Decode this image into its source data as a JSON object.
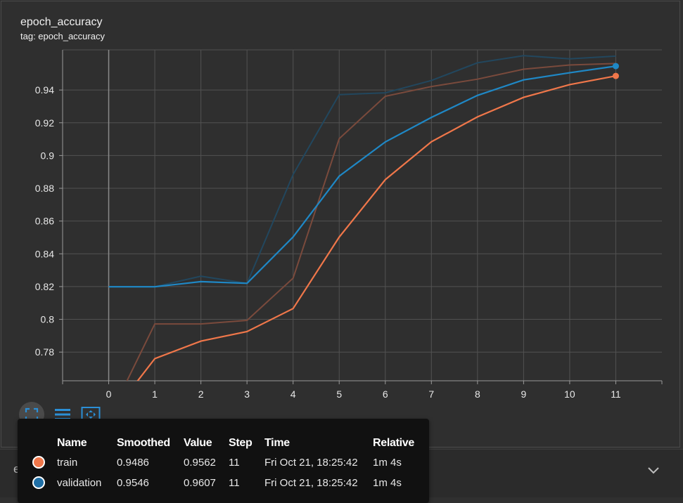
{
  "card": {
    "title": "epoch_accuracy",
    "tag": "tag: epoch_accuracy"
  },
  "chart_data": {
    "type": "line",
    "x": [
      0,
      1,
      2,
      3,
      4,
      5,
      6,
      7,
      8,
      9,
      10,
      11
    ],
    "xlim": [
      -1,
      12
    ],
    "ylim": [
      0.7625,
      0.9645
    ],
    "yticks": [
      0.78,
      0.8,
      0.82,
      0.84,
      0.86,
      0.88,
      0.9,
      0.92,
      0.94
    ],
    "ytick_labels": [
      "0.78",
      "0.8",
      "0.82",
      "0.84",
      "0.86",
      "0.88",
      "0.9",
      "0.92",
      "0.94"
    ],
    "xtick_labels": [
      "0",
      "1",
      "2",
      "3",
      "4",
      "5",
      "6",
      "7",
      "8",
      "9",
      "10",
      "11"
    ],
    "grid": true,
    "series": [
      {
        "name": "train",
        "color": "#f0774a",
        "raw_color": "#7a4a3c",
        "raw_values": [
          0.7396,
          0.7972,
          0.7972,
          0.7994,
          0.8251,
          0.9103,
          0.9362,
          0.9421,
          0.9466,
          0.9527,
          0.9553,
          0.9562
        ],
        "smoothed_values": [
          0.7396,
          0.776,
          0.7867,
          0.7925,
          0.8066,
          0.8502,
          0.8853,
          0.9084,
          0.9236,
          0.9355,
          0.9433,
          0.9486
        ]
      },
      {
        "name": "validation",
        "color": "#1f88c6",
        "raw_color": "#22475e",
        "raw_values": [
          0.8199,
          0.8199,
          0.8263,
          0.822,
          0.8884,
          0.9372,
          0.9383,
          0.9458,
          0.9566,
          0.961,
          0.959,
          0.9607
        ],
        "smoothed_values": [
          0.8199,
          0.8199,
          0.823,
          0.822,
          0.8503,
          0.8874,
          0.9083,
          0.9233,
          0.9367,
          0.9462,
          0.9505,
          0.9546
        ]
      }
    ]
  },
  "tooltip": {
    "headers": [
      "Name",
      "Smoothed",
      "Value",
      "Step",
      "Time",
      "Relative"
    ],
    "rows": [
      {
        "name": "train",
        "smoothed": "0.9486",
        "value": "0.9562",
        "step": "11",
        "time": "Fri Oct 21, 18:25:42",
        "relative": "1m 4s",
        "color": "#f0774a"
      },
      {
        "name": "validation",
        "smoothed": "0.9546",
        "value": "0.9607",
        "step": "11",
        "time": "Fri Oct 21, 18:25:42",
        "relative": "1m 4s",
        "color": "#1f6fa6"
      }
    ]
  },
  "toolbar": {
    "fit_icon": "fit-domain-icon",
    "lines_icon": "toggle-y-log-icon",
    "expand_icon": "expand-icon"
  },
  "collapsed_section": {
    "label": "epoch_loss",
    "chevron_icon": "chevron-down-icon"
  }
}
